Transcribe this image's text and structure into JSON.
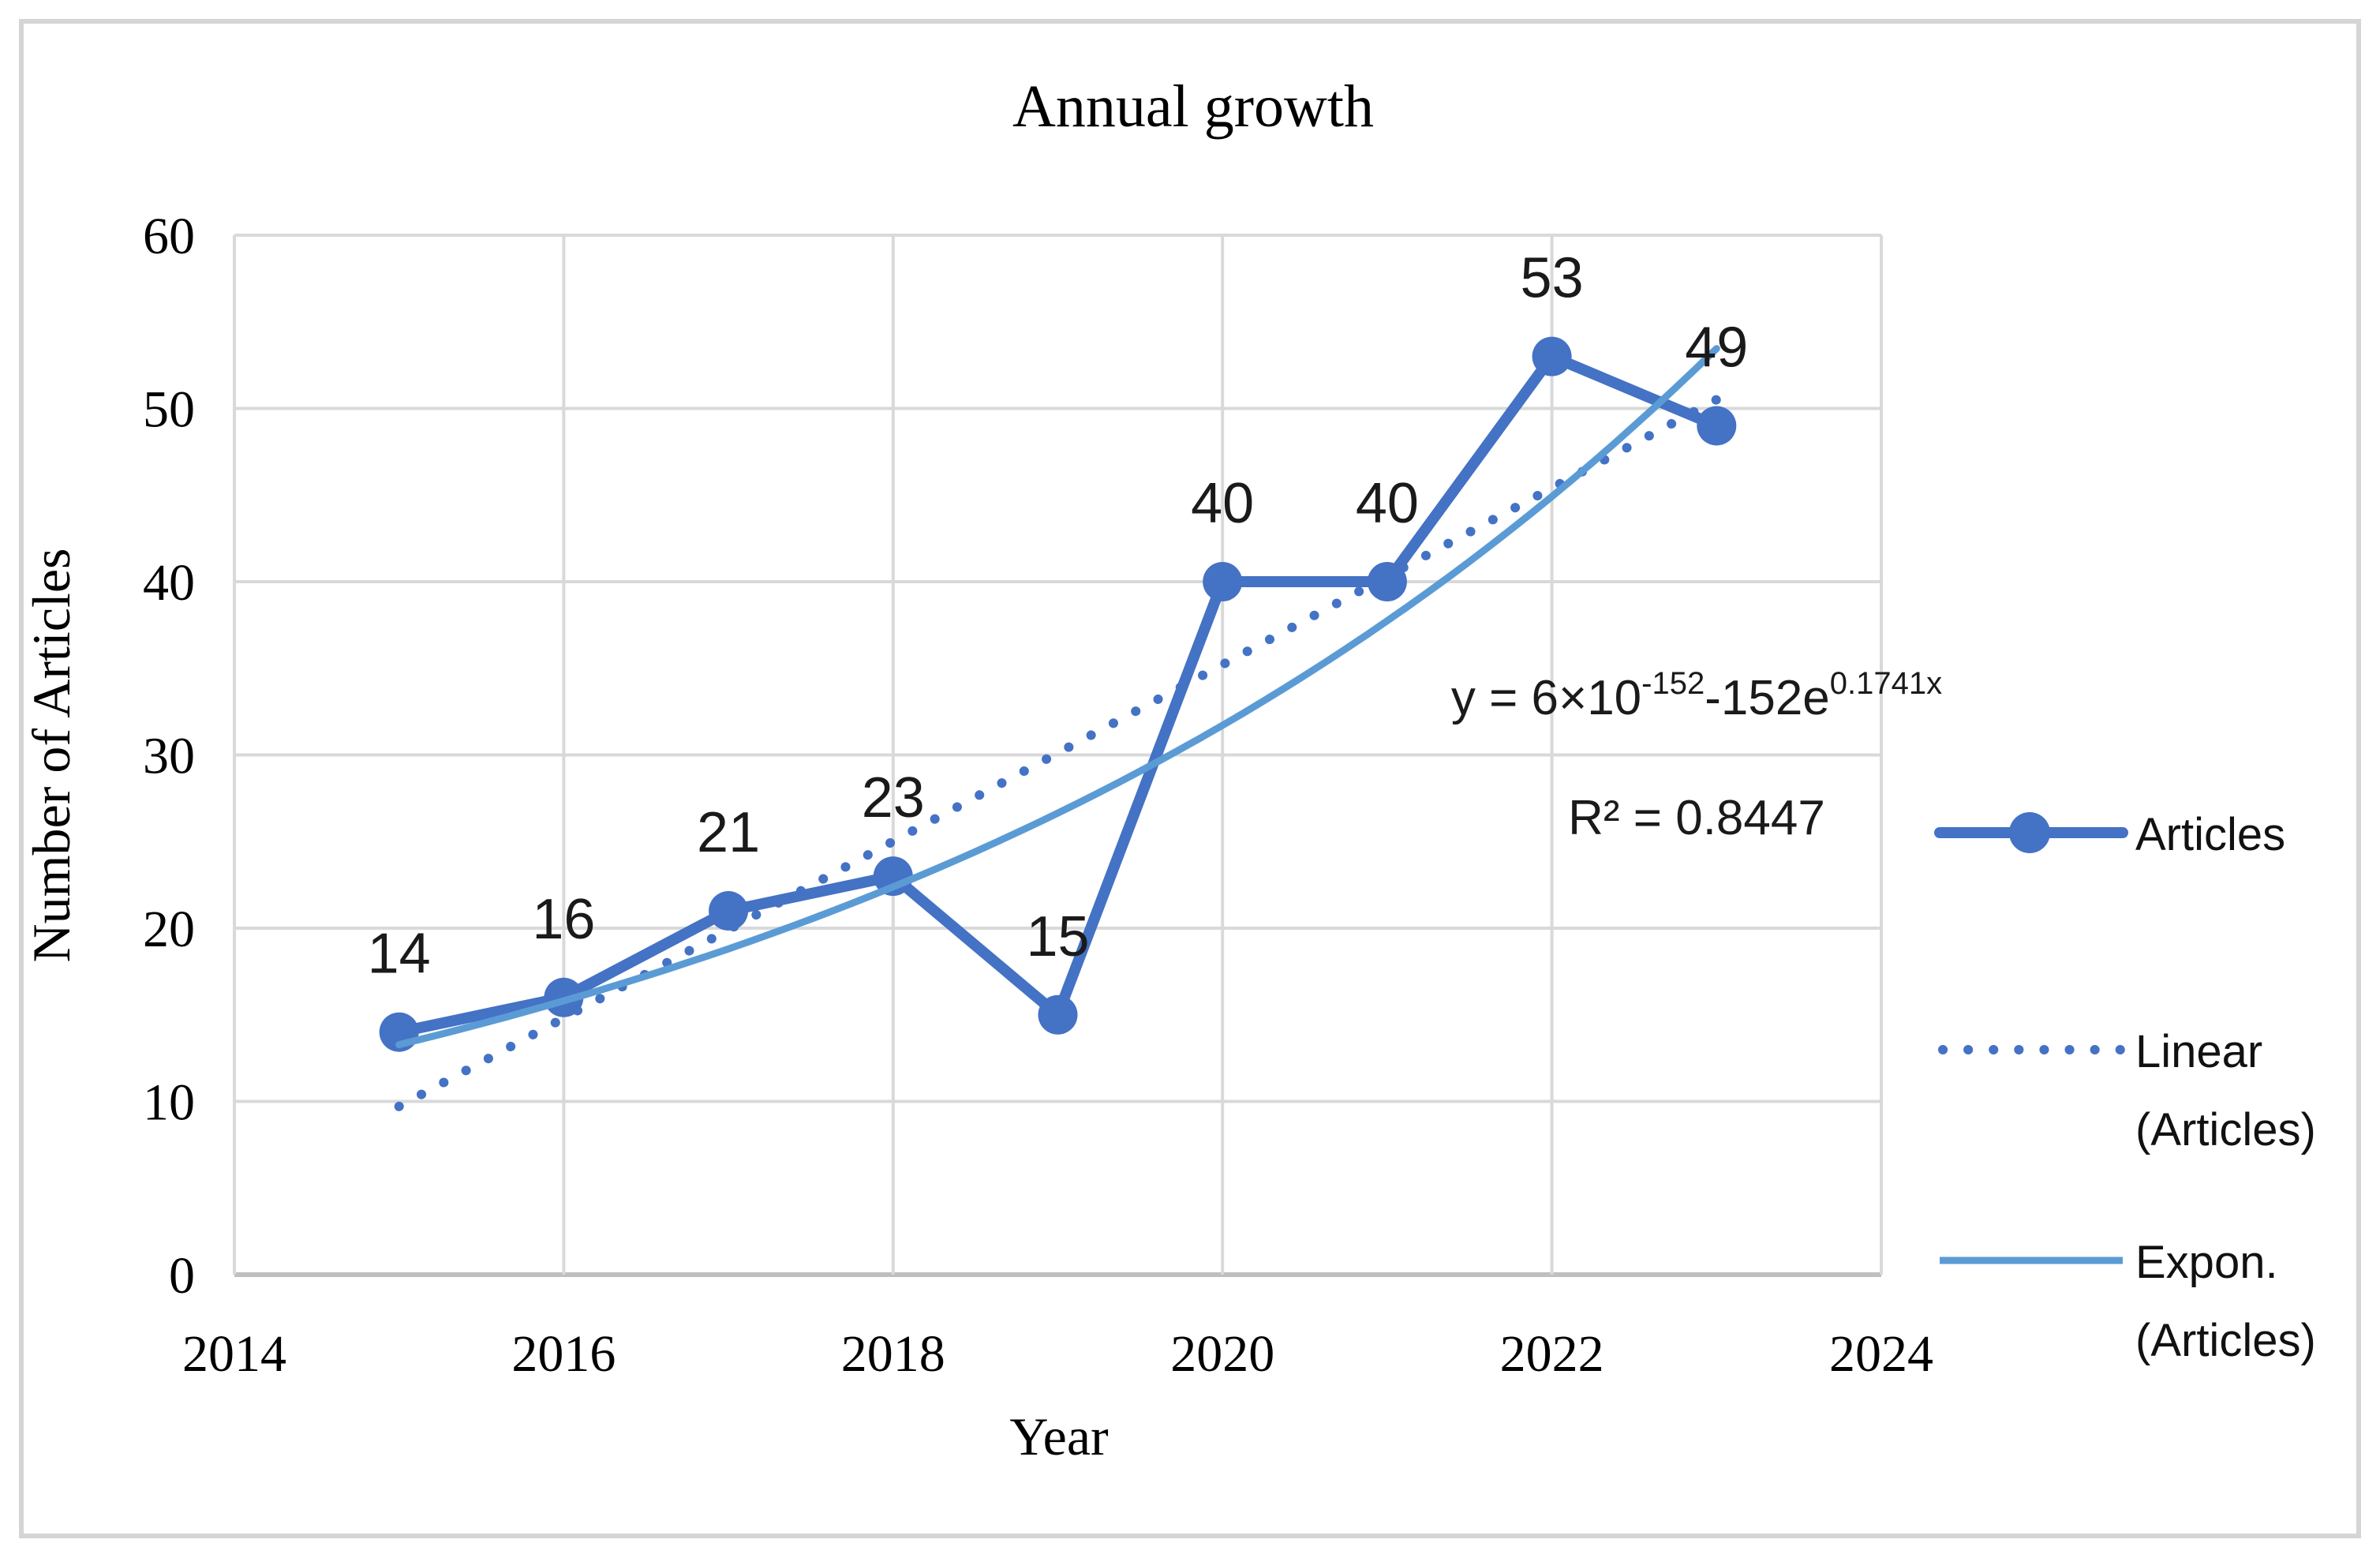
{
  "chart_data": {
    "type": "line",
    "title": "Annual growth",
    "xlabel": "Year",
    "ylabel": "Number of Articles",
    "x": [
      2015,
      2016,
      2017,
      2018,
      2019,
      2020,
      2021,
      2022,
      2023
    ],
    "series": [
      {
        "name": "Articles",
        "values": [
          14,
          16,
          21,
          23,
          15,
          40,
          40,
          53,
          49
        ],
        "color": "#4472C4",
        "style": "solid",
        "markers": true,
        "data_labels": [
          "14",
          "16",
          "21",
          "23",
          "15",
          "40",
          "40",
          "53",
          "49"
        ]
      },
      {
        "name": "Linear (Articles)",
        "trendline": "linear",
        "slope": 5.1,
        "intercept": 4.61,
        "x_origin": 2014,
        "x_range": [
          2015,
          2023
        ],
        "color": "#4472C4",
        "style": "dotted"
      },
      {
        "name": "Expon. (Articles)",
        "trendline": "exponential",
        "coefficient": 11.156,
        "exponent": 0.1741,
        "x_origin": 2014,
        "x_range": [
          2015,
          2023
        ],
        "color": "#5B9BD5",
        "style": "solid"
      }
    ],
    "xlim": [
      2014,
      2024
    ],
    "ylim": [
      0,
      60
    ],
    "xticks": [
      "2014",
      "2016",
      "2018",
      "2020",
      "2022",
      "2024"
    ],
    "yticks": [
      "0",
      "10",
      "20",
      "30",
      "40",
      "50",
      "60"
    ],
    "grid": true,
    "legend_position": "right",
    "annotation": {
      "equation_base1": "y = 6×10",
      "equation_sup1": "-152",
      "equation_base2": "-152e",
      "equation_sup2": "0.1741x",
      "r_squared": "R² = 0.8447"
    },
    "legend": [
      {
        "lines": [
          "Articles"
        ],
        "swatch": "line-marker",
        "color": "#4472C4"
      },
      {
        "lines": [
          "Linear",
          "(Articles)"
        ],
        "swatch": "dotted-line",
        "color": "#4472C4"
      },
      {
        "lines": [
          "Expon.",
          "(Articles)"
        ],
        "swatch": "solid-line",
        "color": "#5B9BD5"
      }
    ],
    "colors": {
      "grid": "#D9D9D9",
      "axis": "#BFBFBF",
      "frame": "#D5D5D5",
      "text": "#000000"
    }
  }
}
